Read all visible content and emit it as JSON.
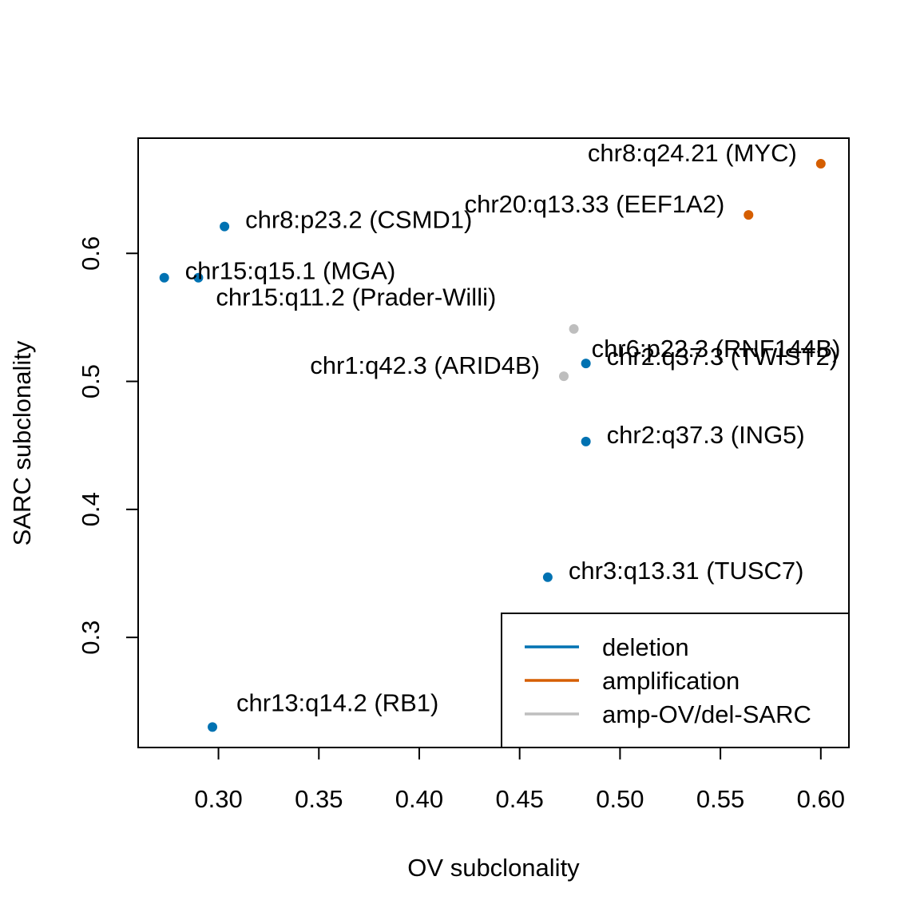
{
  "chart_data": {
    "type": "scatter",
    "title": "",
    "xlabel": "OV subclonality",
    "ylabel": "SARC subclonality",
    "xlim": [
      0.26,
      0.614
    ],
    "ylim": [
      0.214,
      0.69
    ],
    "x_ticks": [
      "0.30",
      "0.35",
      "0.40",
      "0.45",
      "0.50",
      "0.55",
      "0.60"
    ],
    "y_ticks": [
      "0.3",
      "0.4",
      "0.5",
      "0.6"
    ],
    "grid": false,
    "legend_position": "bottom-right",
    "colors": {
      "deletion": "#0072B2",
      "amplification": "#D55E00",
      "amp-OV/del-SARC": "#BEBEBE"
    },
    "legend": [
      {
        "label": "deletion",
        "category": "deletion"
      },
      {
        "label": "amplification",
        "category": "amplification"
      },
      {
        "label": "amp-OV/del-SARC",
        "category": "amp-OV/del-SARC"
      }
    ],
    "points": [
      {
        "label": "chr8:q24.21 (MYC)",
        "x": 0.6,
        "y": 0.67,
        "category": "amplification",
        "label_side": "left"
      },
      {
        "label": "chr20:q13.33 (EEF1A2)",
        "x": 0.564,
        "y": 0.63,
        "category": "amplification",
        "label_side": "left"
      },
      {
        "label": "chr8:p23.2 (CSMD1)",
        "x": 0.303,
        "y": 0.621,
        "category": "deletion",
        "label_side": "right"
      },
      {
        "label": "chr15:q15.1 (MGA)",
        "x": 0.273,
        "y": 0.581,
        "category": "deletion",
        "label_side": "right"
      },
      {
        "label": "chr15:q11.2 (Prader-Willi)",
        "x": 0.29,
        "y": 0.581,
        "category": "deletion",
        "label_side": "below-right"
      },
      {
        "label": "chr6:p22.3 (RNF144B)",
        "x": 0.477,
        "y": 0.541,
        "category": "amp-OV/del-SARC",
        "label_side": "below-right"
      },
      {
        "label": "chr2:q37.3 (TWIST2)",
        "x": 0.483,
        "y": 0.514,
        "category": "deletion",
        "label_side": "right"
      },
      {
        "label": "chr1:q42.3 (ARID4B)",
        "x": 0.472,
        "y": 0.504,
        "category": "amp-OV/del-SARC",
        "label_side": "left"
      },
      {
        "label": "chr2:q37.3 (ING5)",
        "x": 0.483,
        "y": 0.453,
        "category": "deletion",
        "label_side": "right"
      },
      {
        "label": "chr3:q13.31 (TUSC7)",
        "x": 0.464,
        "y": 0.347,
        "category": "deletion",
        "label_side": "right"
      },
      {
        "label": "chr13:q14.2 (RB1)",
        "x": 0.297,
        "y": 0.23,
        "category": "deletion",
        "label_side": "above-right"
      }
    ]
  }
}
